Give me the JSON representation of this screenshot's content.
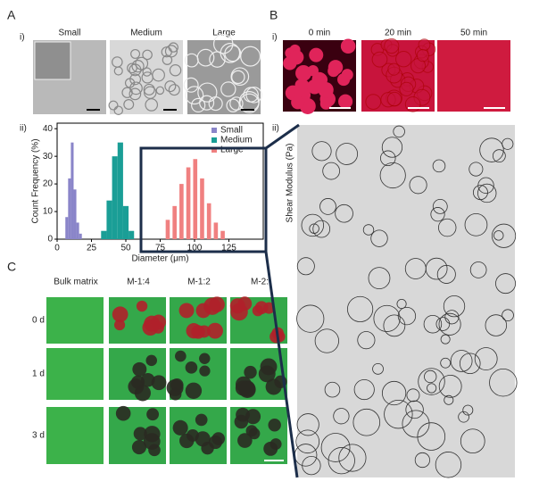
{
  "labels": {
    "a": "A",
    "a-i": "i)",
    "a-ii": "ii)",
    "b": "B",
    "b-i": "i)",
    "b-ii": "ii)",
    "c": "C"
  },
  "panel_a_images": [
    "Small",
    "Medium",
    "Large"
  ],
  "panel_b_images": [
    "0 min",
    "20 min",
    "50 min"
  ],
  "panel_b_ylabel": "Shear Modulus (Pa)",
  "panel_c": {
    "columns": [
      "Bulk matrix",
      "M-1:4",
      "M-1:2",
      "M-2:"
    ],
    "rows": [
      "0 d",
      "1 d",
      "3 d"
    ]
  },
  "chart_data": {
    "type": "histogram",
    "xlabel": "Diameter (μm)",
    "ylabel": "Count Frequency (%)",
    "xlim": [
      0,
      150
    ],
    "ylim": [
      0,
      42
    ],
    "xticks": [
      0,
      25,
      50,
      75,
      100,
      125
    ],
    "yticks": [
      0,
      10,
      20,
      30,
      40
    ],
    "legend": "upper right",
    "series": [
      {
        "name": "Small",
        "color": "#8a85c9",
        "bins": [
          6,
          8,
          10,
          12,
          14,
          16,
          18
        ],
        "values": [
          8,
          22,
          35,
          18,
          6,
          2
        ]
      },
      {
        "name": "Medium",
        "color": "#1a9e96",
        "bins": [
          32,
          36,
          40,
          44,
          48,
          52,
          56
        ],
        "values": [
          3,
          14,
          30,
          35,
          12,
          3
        ]
      },
      {
        "name": "Large",
        "color": "#f08080",
        "bins": [
          78,
          83,
          88,
          93,
          98,
          103,
          108,
          113,
          118,
          123
        ],
        "values": [
          7,
          12,
          20,
          26,
          29,
          22,
          13,
          6,
          3
        ]
      }
    ]
  }
}
